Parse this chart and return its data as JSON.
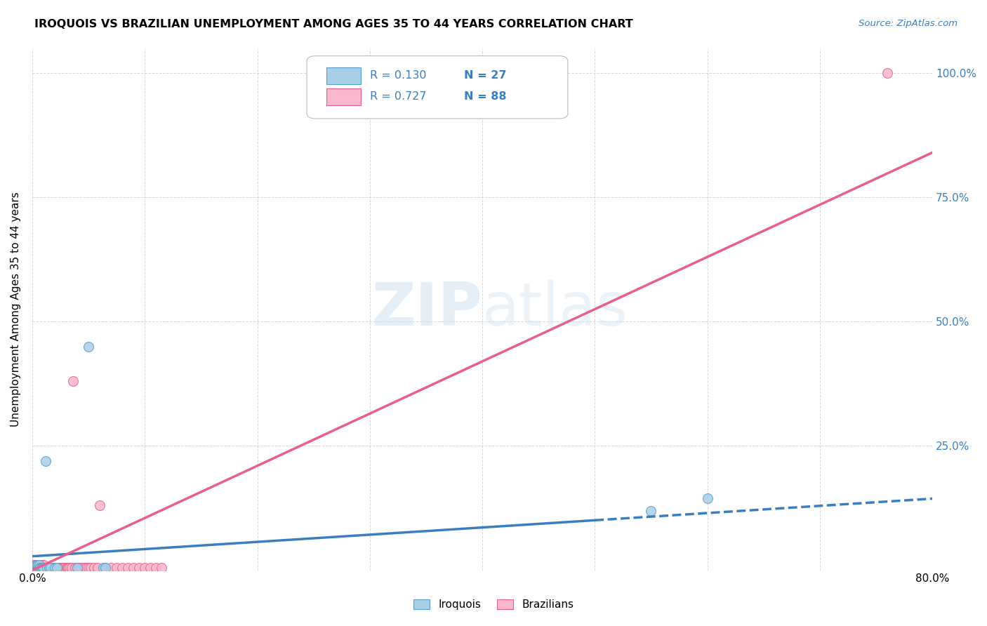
{
  "title": "IROQUOIS VS BRAZILIAN UNEMPLOYMENT AMONG AGES 35 TO 44 YEARS CORRELATION CHART",
  "source": "Source: ZipAtlas.com",
  "ylabel": "Unemployment Among Ages 35 to 44 years",
  "xlim": [
    0,
    0.8
  ],
  "ylim": [
    0,
    1.05
  ],
  "legend_iroquois_R": "R = 0.130",
  "legend_iroquois_N": "N = 27",
  "legend_brazilian_R": "R = 0.727",
  "legend_brazilian_N": "N = 88",
  "iroquois_color": "#a8cfe8",
  "iroquois_edge_color": "#5b9dc9",
  "brazilian_color": "#f9b8cb",
  "brazilian_edge_color": "#e8608a",
  "iroquois_line_color": "#3a7ebf",
  "brazilian_line_color": "#e8608a",
  "background_color": "#ffffff",
  "iroquois_x": [
    0.001,
    0.002,
    0.003,
    0.004,
    0.004,
    0.005,
    0.005,
    0.006,
    0.006,
    0.007,
    0.007,
    0.008,
    0.009,
    0.01,
    0.01,
    0.012,
    0.013,
    0.015,
    0.016,
    0.02,
    0.022,
    0.04,
    0.05,
    0.063,
    0.065,
    0.55,
    0.6
  ],
  "iroquois_y": [
    0.005,
    0.005,
    0.005,
    0.005,
    0.01,
    0.005,
    0.01,
    0.005,
    0.01,
    0.005,
    0.005,
    0.005,
    0.005,
    0.005,
    0.005,
    0.22,
    0.005,
    0.005,
    0.005,
    0.005,
    0.005,
    0.005,
    0.45,
    0.005,
    0.005,
    0.12,
    0.145
  ],
  "brazilian_x": [
    0.001,
    0.001,
    0.001,
    0.002,
    0.002,
    0.002,
    0.002,
    0.003,
    0.003,
    0.003,
    0.003,
    0.003,
    0.004,
    0.004,
    0.004,
    0.004,
    0.005,
    0.005,
    0.005,
    0.005,
    0.006,
    0.006,
    0.006,
    0.007,
    0.007,
    0.007,
    0.008,
    0.008,
    0.009,
    0.009,
    0.01,
    0.01,
    0.01,
    0.01,
    0.011,
    0.011,
    0.012,
    0.012,
    0.013,
    0.013,
    0.014,
    0.015,
    0.015,
    0.016,
    0.016,
    0.017,
    0.018,
    0.018,
    0.019,
    0.02,
    0.02,
    0.021,
    0.022,
    0.023,
    0.024,
    0.025,
    0.026,
    0.027,
    0.028,
    0.03,
    0.031,
    0.032,
    0.033,
    0.035,
    0.036,
    0.038,
    0.04,
    0.042,
    0.044,
    0.046,
    0.048,
    0.05,
    0.052,
    0.055,
    0.058,
    0.06,
    0.065,
    0.07,
    0.075,
    0.08,
    0.085,
    0.09,
    0.095,
    0.1,
    0.105,
    0.11,
    0.115,
    0.76
  ],
  "brazilian_y": [
    0.005,
    0.01,
    0.005,
    0.005,
    0.01,
    0.005,
    0.005,
    0.005,
    0.01,
    0.005,
    0.005,
    0.005,
    0.005,
    0.01,
    0.005,
    0.005,
    0.005,
    0.01,
    0.005,
    0.005,
    0.005,
    0.01,
    0.005,
    0.005,
    0.005,
    0.005,
    0.01,
    0.005,
    0.005,
    0.005,
    0.005,
    0.01,
    0.005,
    0.005,
    0.005,
    0.005,
    0.005,
    0.005,
    0.005,
    0.005,
    0.005,
    0.005,
    0.005,
    0.005,
    0.005,
    0.005,
    0.005,
    0.005,
    0.005,
    0.005,
    0.005,
    0.005,
    0.005,
    0.005,
    0.005,
    0.005,
    0.005,
    0.005,
    0.005,
    0.005,
    0.005,
    0.005,
    0.005,
    0.005,
    0.38,
    0.005,
    0.005,
    0.005,
    0.005,
    0.005,
    0.005,
    0.005,
    0.005,
    0.005,
    0.005,
    0.13,
    0.005,
    0.005,
    0.005,
    0.005,
    0.005,
    0.005,
    0.005,
    0.005,
    0.005,
    0.005,
    0.005,
    1.0
  ],
  "iro_line_intercept": 0.028,
  "iro_line_slope": 0.145,
  "iro_line_solid_end": 0.5,
  "bra_line_intercept": 0.0,
  "bra_line_slope": 1.05
}
